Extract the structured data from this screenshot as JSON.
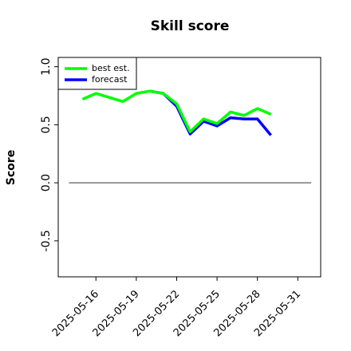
{
  "chart_data": {
    "type": "line",
    "title": "Skill score",
    "ylabel": "Score",
    "xlim": [
      "2025-05-13",
      "2025-06-01"
    ],
    "xlim_offsets": [
      0.2,
      0.7
    ],
    "xticks": [
      "2025-05-16",
      "2025-05-19",
      "2025-05-22",
      "2025-05-25",
      "2025-05-28",
      "2025-05-31"
    ],
    "xtick_label_colors": [
      "#000000",
      "#000000",
      "#228b22",
      "#000000",
      "#000000",
      "#000000"
    ],
    "ylim": [
      -0.81,
      1.08
    ],
    "yticks": [
      -0.5,
      {
        "value": 0,
        "label": "0.0"
      },
      0.5,
      {
        "value": 1,
        "label": "1.0"
      }
    ],
    "hline": {
      "y": 0,
      "x": [
        "2025-05-14",
        "2025-06-01"
      ],
      "color": "#333333"
    },
    "legend": "upper left",
    "series": [
      {
        "name": "best est.",
        "color": "#00ff00",
        "x": [
          "2025-05-15",
          "2025-05-16",
          "2025-05-17",
          "2025-05-18",
          "2025-05-19",
          "2025-05-20",
          "2025-05-21",
          "2025-05-22",
          "2025-05-23",
          "2025-05-24",
          "2025-05-25",
          "2025-05-26",
          "2025-05-27",
          "2025-05-28",
          "2025-05-29"
        ],
        "values": [
          0.72,
          0.77,
          0.735,
          0.7,
          0.77,
          0.79,
          0.77,
          0.68,
          0.44,
          0.55,
          0.51,
          0.61,
          0.58,
          0.64,
          0.59
        ]
      },
      {
        "name": "forecast",
        "color": "#0000ff",
        "x": [
          "2025-05-20",
          "2025-05-21",
          "2025-05-22",
          "2025-05-23",
          "2025-05-24",
          "2025-05-25",
          "2025-05-26",
          "2025-05-27",
          "2025-05-28",
          "2025-05-29"
        ],
        "values": [
          0.79,
          0.77,
          0.66,
          0.42,
          0.53,
          0.49,
          0.56,
          0.55,
          0.55,
          0.41
        ]
      }
    ]
  }
}
